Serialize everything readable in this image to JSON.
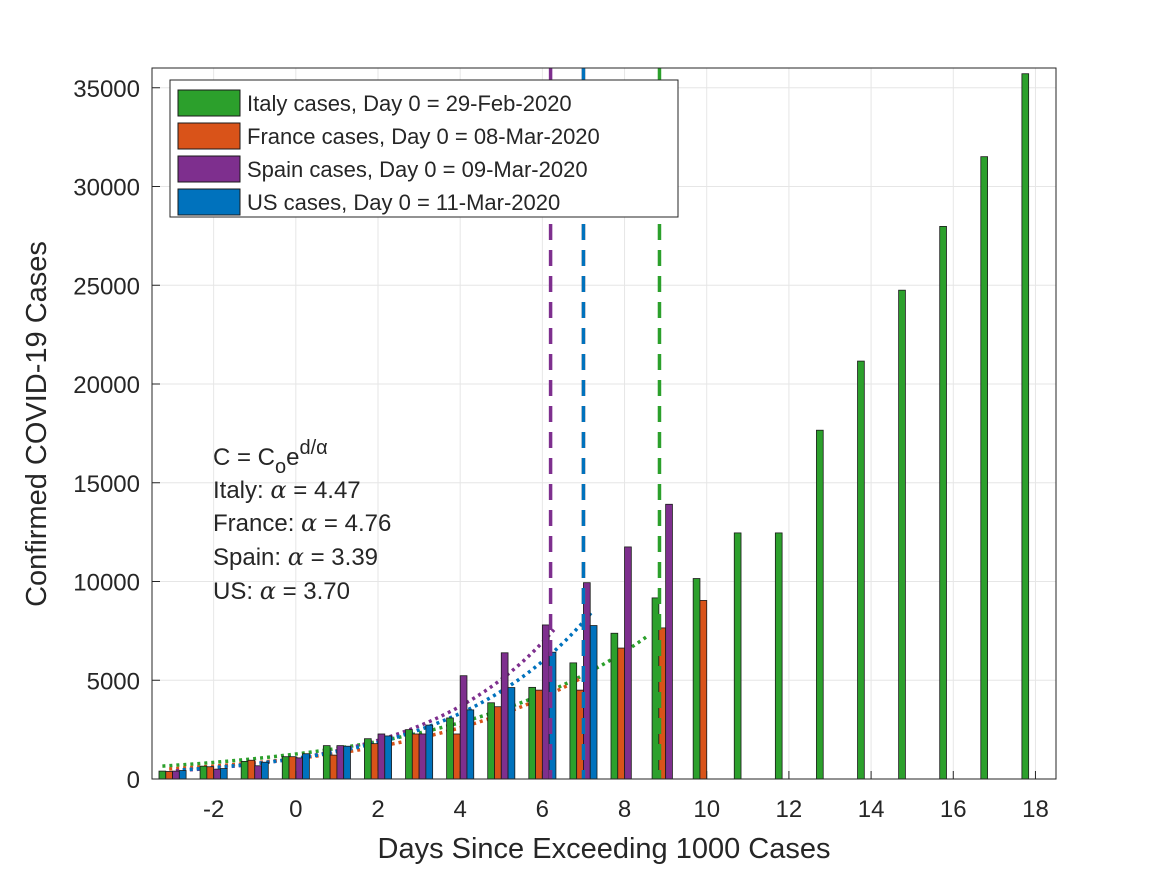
{
  "chart_data": {
    "type": "bar",
    "xlabel": "Days Since Exceeding 1000 Cases",
    "ylabel": "Confirmed COVID-19 Cases",
    "xlim": [
      -3.5,
      18.5
    ],
    "ylim": [
      0,
      36000
    ],
    "xticks": [
      "-2",
      "0",
      "2",
      "4",
      "6",
      "8",
      "10",
      "12",
      "14",
      "16",
      "18"
    ],
    "yticks": [
      "0",
      "5000",
      "10000",
      "15000",
      "20000",
      "25000",
      "30000",
      "35000"
    ],
    "grid": true,
    "legend_position": "top-left",
    "series": [
      {
        "name": "Italy cases, Day 0 = 29-Feb-2020",
        "color": "#2ca02c",
        "x": [
          -3,
          -2,
          -1,
          0,
          1,
          2,
          3,
          4,
          5,
          6,
          7,
          8,
          9,
          10,
          11,
          12,
          13,
          14,
          15,
          16,
          17,
          18
        ],
        "values": [
          400,
          650,
          890,
          1130,
          1690,
          2040,
          2500,
          3090,
          3860,
          4640,
          5880,
          7380,
          9170,
          10150,
          12460,
          12460,
          17660,
          21160,
          24750,
          27980,
          31510,
          35710
        ],
        "fit_alpha": "4.47",
        "cutoff_day": 8.85
      },
      {
        "name": "France cases, Day 0 = 08-Mar-2020",
        "color": "#d95319",
        "x": [
          -3,
          -2,
          -1,
          0,
          1,
          2,
          3,
          4,
          5,
          6,
          7,
          8,
          9,
          10
        ],
        "values": [
          380,
          620,
          950,
          1130,
          1210,
          1790,
          2280,
          2280,
          3660,
          4500,
          4500,
          6630,
          7650,
          9040
        ],
        "fit_alpha": "4.76",
        "cutoff_day": 7
      },
      {
        "name": "Spain cases, Day 0 = 09-Mar-2020",
        "color": "#7e2f8e",
        "x": [
          -3,
          -2,
          -1,
          0,
          1,
          2,
          3,
          4,
          5,
          6,
          7,
          8,
          9
        ],
        "values": [
          400,
          500,
          670,
          1070,
          1690,
          2280,
          2280,
          5230,
          6390,
          7800,
          9940,
          11750,
          13910
        ],
        "fit_alpha": "3.39",
        "cutoff_day": 6.2
      },
      {
        "name": "US cases, Day 0 = 11-Mar-2020",
        "color": "#0072bd",
        "x": [
          -3,
          -2,
          -1,
          0,
          1,
          2,
          3,
          4,
          5,
          6,
          7
        ],
        "values": [
          430,
          530,
          850,
          1280,
          1660,
          2180,
          2730,
          3500,
          4630,
          6420,
          7770
        ],
        "fit_alpha": "3.70",
        "cutoff_day": 7
      }
    ],
    "annotations": {
      "formula": "C = C",
      "formula_sub": "o",
      "formula_e": "e",
      "formula_sup": "d/α",
      "italy": "Italy: ",
      "france": "France: ",
      "spain": "Spain: ",
      "us": "US: ",
      "alpha": "α",
      "equals": " = "
    }
  }
}
